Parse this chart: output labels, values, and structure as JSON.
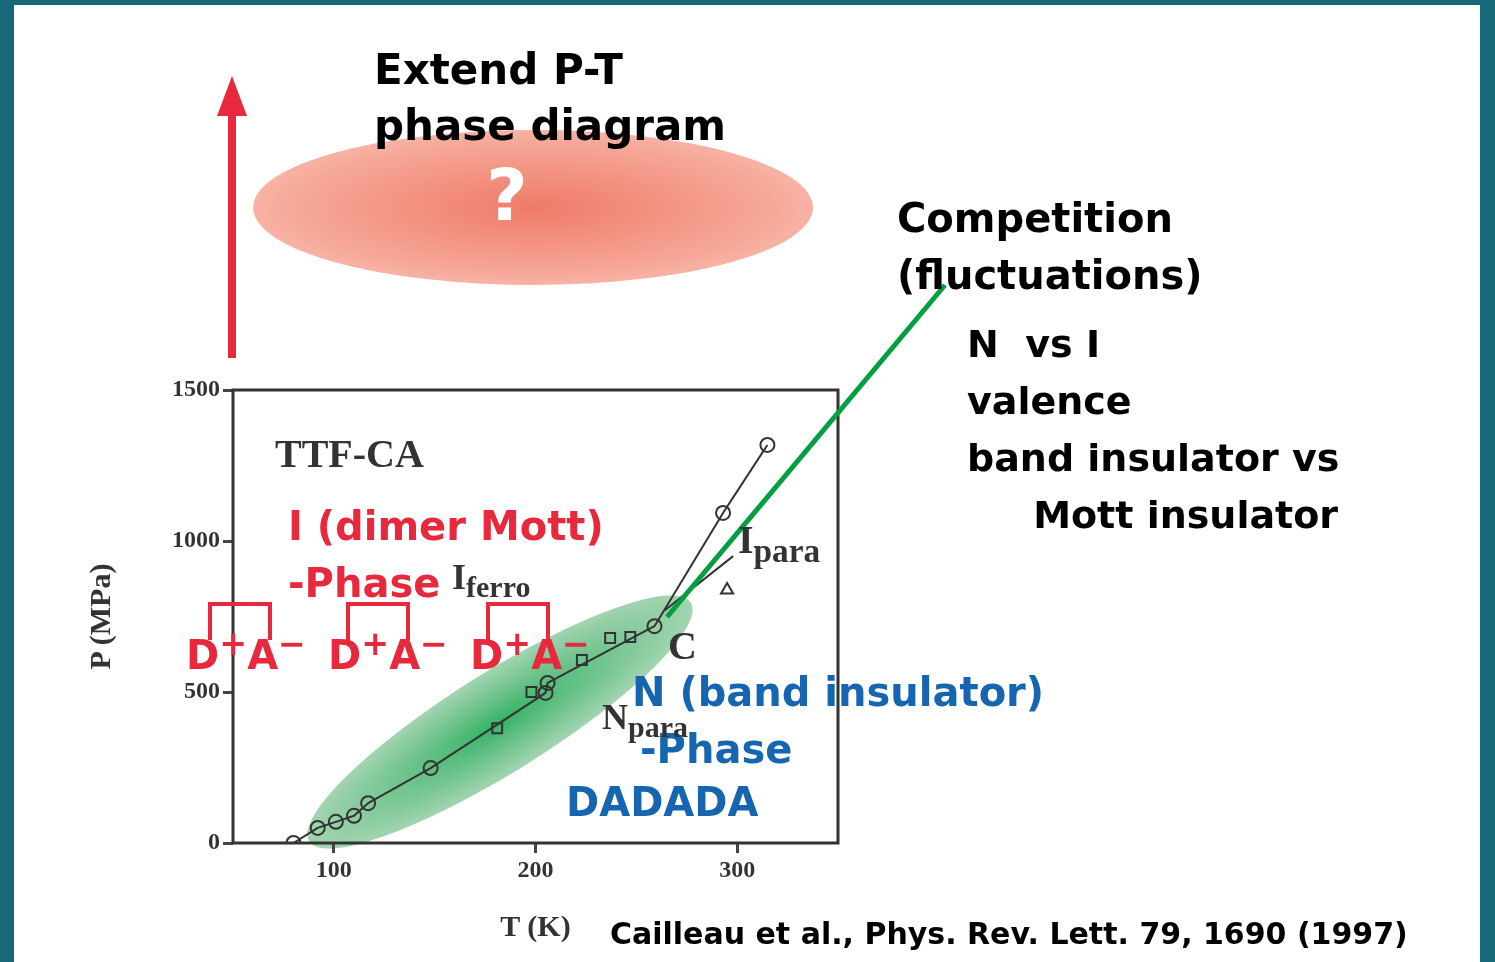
{
  "chart_data": {
    "type": "line",
    "title": "Extend P-T\nphase diagram",
    "xlabel": "T (K)",
    "ylabel": "P (MPa)",
    "xlim": [
      50,
      350
    ],
    "xticks": [
      100,
      200,
      300
    ],
    "ylim": [
      0,
      1500
    ],
    "yticks": [
      0,
      500,
      1000,
      1500
    ],
    "grid": false,
    "legend": false,
    "series": [
      {
        "type": "line",
        "marker": "circle",
        "color": "#333333",
        "x": [
          80,
          92,
          101,
          110,
          117,
          148,
          205,
          206,
          259,
          293,
          315
        ],
        "values": [
          0,
          50,
          70,
          90,
          132,
          248,
          497,
          530,
          718,
          1093,
          1318
        ]
      },
      {
        "type": "scatter",
        "marker": "square",
        "color": "#333333",
        "x": [
          181,
          198,
          223,
          237,
          247
        ],
        "values": [
          380,
          500,
          606,
          679,
          682
        ]
      },
      {
        "type": "line",
        "marker": "none",
        "color": "#333333",
        "x": [
          264,
          298
        ],
        "values": [
          770,
          950
        ]
      },
      {
        "type": "scatter",
        "marker": "triangle",
        "color": "#333333",
        "x": [
          295
        ],
        "values": [
          838
        ]
      }
    ],
    "annotations": [
      "?",
      "Competition\n(fluctuations)",
      "N  vs I\nvalence\nband insulator vs\n     Mott insulator",
      "I (dimer Mott)\n-Phase",
      "D$^{+}$A$^{−}$",
      "D$^{+}$A$^{−}$",
      "D$^{+}$A$^{−}$",
      "N (band insulator)",
      "-Phase",
      "DADADA",
      "TTF-CA",
      "I$_{ferro}$",
      "I$_{para}$",
      "C",
      "N$_{para}$",
      "Cailleau et al., Phys. Rev. Lett. 79, 1690 (1997)"
    ]
  }
}
